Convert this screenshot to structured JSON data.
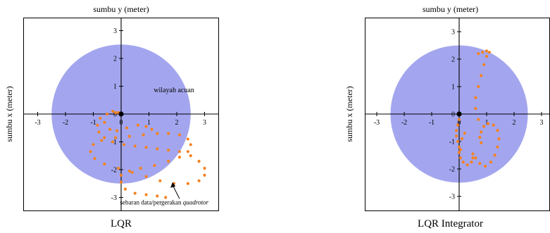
{
  "chart_data": [
    {
      "type": "scatter",
      "title": "LQR",
      "xlabel": "sumbu y (meter)",
      "ylabel": "sumbu x (meter)",
      "xlim": [
        -3.3,
        3.3
      ],
      "ylim": [
        -3.3,
        3.3
      ],
      "xticks": [
        "-3",
        "-2",
        "-1",
        "0",
        "1",
        "2",
        "3"
      ],
      "yticks": [
        "3",
        "2",
        "1",
        "0",
        "-1",
        "-2",
        "-3"
      ],
      "region": {
        "label": "wilayah acuan",
        "radius": 2.5,
        "color": "#a3a6ee"
      },
      "origin_marker": [
        0,
        0
      ],
      "annotation": {
        "text": "sebaran data/pergerakan ",
        "text_italic": "quadrotor"
      },
      "series": [
        {
          "color": "#f5821f",
          "points": [
            [
              0.0,
              0.0
            ],
            [
              -0.2,
              0.05
            ],
            [
              -0.5,
              0.0
            ],
            [
              -0.75,
              -0.15
            ],
            [
              -0.85,
              -0.4
            ],
            [
              -0.8,
              -0.65
            ],
            [
              -0.6,
              -0.85
            ],
            [
              -0.3,
              -1.0
            ],
            [
              0.1,
              -1.1
            ],
            [
              0.5,
              -1.15
            ],
            [
              0.9,
              -1.2
            ],
            [
              1.3,
              -1.25
            ],
            [
              1.7,
              -1.3
            ],
            [
              2.1,
              -1.35
            ],
            [
              2.5,
              -1.5
            ],
            [
              2.8,
              -1.7
            ],
            [
              3.0,
              -1.95
            ],
            [
              3.0,
              -2.2
            ],
            [
              2.8,
              -2.4
            ],
            [
              2.4,
              -2.5
            ],
            [
              1.9,
              -2.5
            ],
            [
              1.4,
              -2.4
            ],
            [
              0.9,
              -2.25
            ],
            [
              0.4,
              -2.1
            ],
            [
              -0.1,
              -1.95
            ],
            [
              -0.6,
              -1.8
            ],
            [
              -0.95,
              -1.6
            ],
            [
              -1.1,
              -1.35
            ],
            [
              -1.0,
              -1.1
            ],
            [
              -0.7,
              -0.95
            ],
            [
              -0.2,
              -0.85
            ],
            [
              0.3,
              -0.8
            ],
            [
              0.8,
              -0.75
            ],
            [
              1.3,
              -0.7
            ],
            [
              1.7,
              -0.7
            ],
            [
              2.1,
              -0.75
            ],
            [
              2.4,
              -0.9
            ],
            [
              2.5,
              -1.1
            ],
            [
              2.4,
              -1.35
            ],
            [
              2.1,
              -1.55
            ],
            [
              1.7,
              -1.7
            ],
            [
              1.2,
              -1.85
            ],
            [
              0.7,
              -1.95
            ],
            [
              0.3,
              -2.05
            ],
            [
              0.0,
              -2.2
            ],
            [
              0.0,
              -2.45
            ],
            [
              0.15,
              -2.7
            ],
            [
              0.5,
              -2.85
            ],
            [
              0.9,
              -2.9
            ],
            [
              1.3,
              -2.95
            ],
            [
              1.6,
              -3.0
            ],
            [
              -0.3,
              0.1
            ],
            [
              -0.1,
              0.05
            ],
            [
              -0.6,
              -0.3
            ],
            [
              -0.4,
              -0.55
            ],
            [
              -0.15,
              -0.6
            ],
            [
              0.2,
              -0.5
            ],
            [
              0.6,
              -0.4
            ],
            [
              0.9,
              -0.45
            ],
            [
              1.1,
              -0.55
            ]
          ]
        }
      ]
    },
    {
      "type": "scatter",
      "title": "LQR Integrator",
      "xlabel": "sumbu y (meter)",
      "ylabel": "sumbu x (meter)",
      "xlim": [
        -3.3,
        3.3
      ],
      "ylim": [
        -3.3,
        3.3
      ],
      "xticks": [
        "-3",
        "-2",
        "-1",
        "0",
        "1",
        "2",
        "3"
      ],
      "yticks": [
        "3",
        "2",
        "1",
        "0",
        "-1",
        "-2",
        "-3"
      ],
      "region": {
        "radius": 2.5,
        "color": "#a3a6ee"
      },
      "origin_marker": [
        0,
        0
      ],
      "series": [
        {
          "color": "#f5821f",
          "points": [
            [
              0.0,
              0.0
            ],
            [
              0.0,
              -0.2
            ],
            [
              -0.05,
              -0.4
            ],
            [
              -0.1,
              -0.6
            ],
            [
              -0.1,
              -0.8
            ],
            [
              -0.05,
              -1.0
            ],
            [
              0.0,
              -1.2
            ],
            [
              0.0,
              -1.4
            ],
            [
              0.05,
              -1.6
            ],
            [
              0.15,
              -1.75
            ],
            [
              0.3,
              -1.85
            ],
            [
              0.45,
              -1.75
            ],
            [
              0.5,
              -1.6
            ],
            [
              0.5,
              -1.45
            ],
            [
              0.6,
              -1.6
            ],
            [
              0.75,
              -1.8
            ],
            [
              0.95,
              -1.9
            ],
            [
              1.15,
              -1.75
            ],
            [
              1.3,
              -1.5
            ],
            [
              1.4,
              -1.2
            ],
            [
              1.45,
              -0.9
            ],
            [
              1.4,
              -0.6
            ],
            [
              1.25,
              -0.4
            ],
            [
              1.05,
              -0.35
            ],
            [
              0.9,
              -0.45
            ],
            [
              0.8,
              -0.65
            ],
            [
              0.75,
              -0.85
            ],
            [
              0.8,
              -1.05
            ],
            [
              0.7,
              -0.2
            ],
            [
              0.6,
              0.2
            ],
            [
              0.6,
              0.6
            ],
            [
              0.7,
              1.0
            ],
            [
              0.8,
              1.4
            ],
            [
              0.9,
              1.8
            ],
            [
              1.0,
              2.1
            ],
            [
              1.1,
              2.25
            ],
            [
              1.0,
              2.3
            ],
            [
              0.85,
              2.25
            ],
            [
              0.7,
              2.2
            ],
            [
              0.1,
              -0.9
            ],
            [
              0.2,
              -0.7
            ],
            [
              0.05,
              -1.3
            ]
          ]
        }
      ]
    }
  ]
}
